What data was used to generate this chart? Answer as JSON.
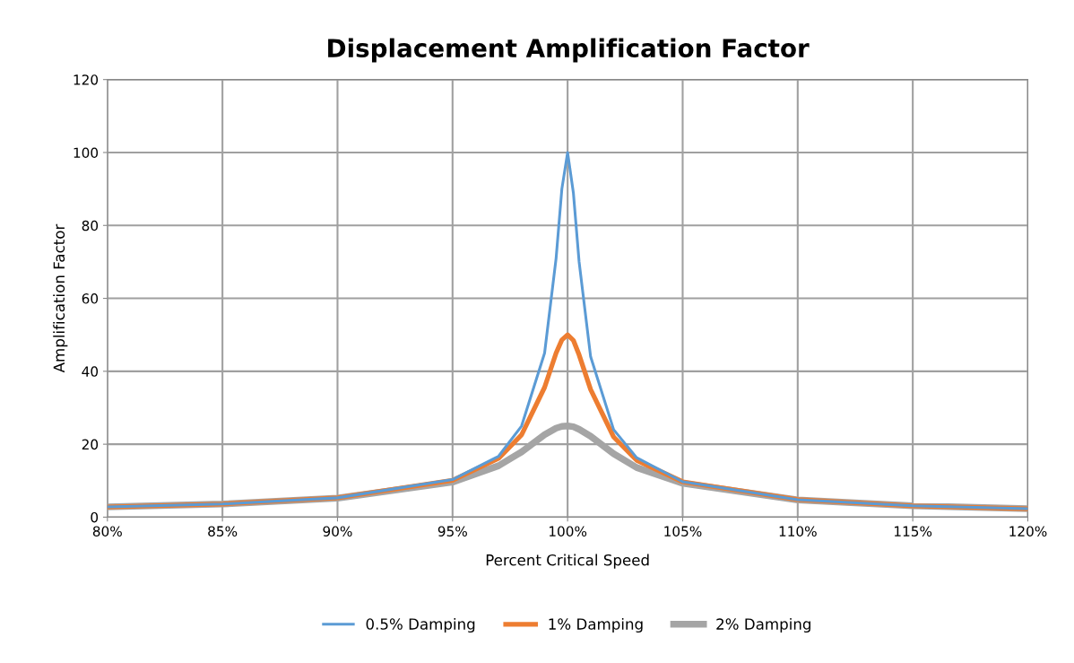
{
  "chart_data": {
    "type": "line",
    "title": "Displacement Amplification Factor",
    "xlabel": "Percent Critical Speed",
    "ylabel": "Amplification Factor",
    "x": [
      80,
      85,
      90,
      95,
      97,
      98,
      99,
      99.5,
      99.75,
      100,
      100.25,
      100.5,
      101,
      102,
      103,
      105,
      110,
      115,
      120
    ],
    "series": [
      {
        "name": "0.5% Damping",
        "color": "#5b9bd5",
        "values": [
          2.8,
          3.6,
          5.3,
          10.3,
          16.7,
          25,
          45,
          71,
          90,
          100,
          89,
          70,
          44,
          24,
          16.3,
          9.7,
          4.8,
          3.1,
          2.3
        ]
      },
      {
        "name": "1% Damping",
        "color": "#ed7d31",
        "values": [
          2.8,
          3.6,
          5.3,
          10.1,
          16.1,
          22.6,
          35.6,
          45,
          48.6,
          50,
          48.5,
          44.5,
          35,
          22,
          15.6,
          9.7,
          4.8,
          3.1,
          2.3
        ]
      },
      {
        "name": "2% Damping",
        "color": "#a5a5a5",
        "values": [
          2.8,
          3.6,
          5.2,
          9.6,
          14.1,
          17.9,
          22.6,
          24.4,
          24.9,
          25,
          24.8,
          24.1,
          22.2,
          17.4,
          13.6,
          9.3,
          4.7,
          3.1,
          2.3
        ]
      }
    ],
    "xlim": [
      80,
      120
    ],
    "xticks": [
      {
        "value": 80,
        "label": "80%"
      },
      {
        "value": 85,
        "label": "85%"
      },
      {
        "value": 90,
        "label": "90%"
      },
      {
        "value": 95,
        "label": "95%"
      },
      {
        "value": 100,
        "label": "100%"
      },
      {
        "value": 105,
        "label": "105%"
      },
      {
        "value": 110,
        "label": "110%"
      },
      {
        "value": 115,
        "label": "115%"
      },
      {
        "value": 120,
        "label": "120%"
      }
    ],
    "ylim": [
      0,
      120
    ],
    "yticks": [
      0,
      20,
      40,
      60,
      80,
      100,
      120
    ],
    "grid": true,
    "legend": "bottom",
    "marker": "none",
    "line_style": "solid"
  }
}
